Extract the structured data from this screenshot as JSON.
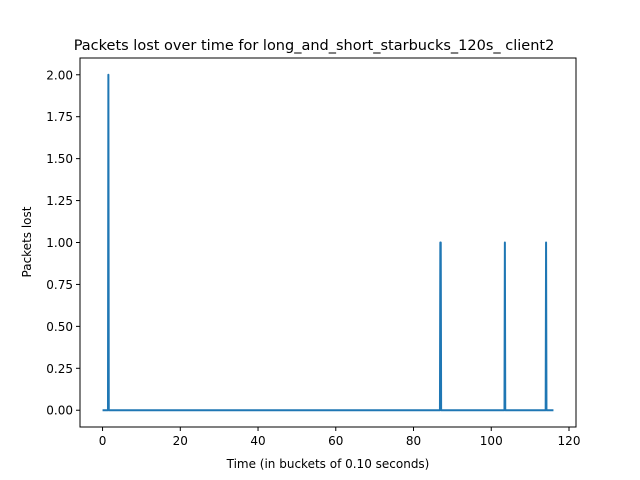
{
  "chart_data": {
    "type": "line",
    "title": "Packets lost over time for long_and_short_starbucks_120s_ client2",
    "xlabel": "Time (in buckets of 0.10 seconds)",
    "ylabel": "Packets lost",
    "xlim": [
      -5.8,
      121.8
    ],
    "ylim": [
      -0.1,
      2.1
    ],
    "xticks": [
      0,
      20,
      40,
      60,
      80,
      100,
      120
    ],
    "yticks": [
      0.0,
      0.25,
      0.5,
      0.75,
      1.0,
      1.25,
      1.5,
      1.75,
      2.0
    ],
    "xtick_labels": [
      "0",
      "20",
      "40",
      "60",
      "80",
      "100",
      "120"
    ],
    "ytick_labels": [
      "0.00",
      "0.25",
      "0.50",
      "0.75",
      "1.00",
      "1.25",
      "1.50",
      "1.75",
      "2.00"
    ],
    "grid": false,
    "color": "#1f77b4",
    "series": [
      {
        "x": [
          0,
          1.4,
          1.5,
          1.6,
          86.8,
          86.9,
          87.0,
          87.1,
          103.4,
          103.5,
          103.6,
          114.0,
          114.1,
          114.2,
          116.0
        ],
        "y": [
          0,
          0,
          2,
          0,
          0,
          1,
          1,
          0,
          0,
          1,
          0,
          0,
          1,
          0,
          0
        ]
      }
    ]
  }
}
